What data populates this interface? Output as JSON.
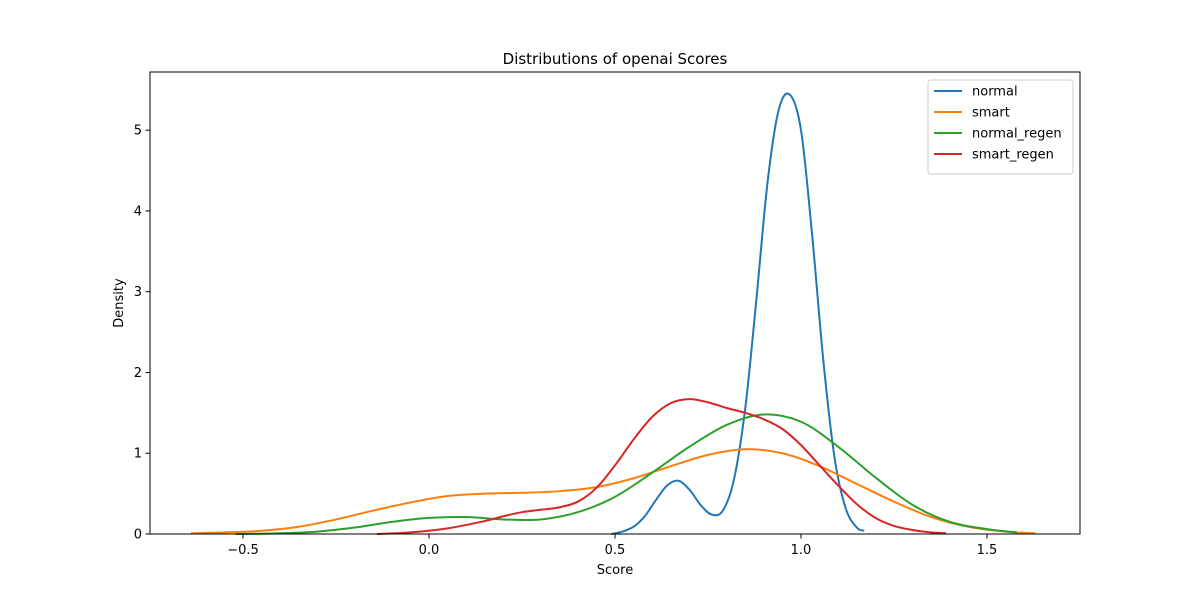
{
  "chart_data": {
    "type": "line",
    "title": "Distributions of openai Scores",
    "xlabel": "Score",
    "ylabel": "Density",
    "xlim": [
      -0.75,
      1.75
    ],
    "ylim": [
      0,
      5.72
    ],
    "xticks": [
      -0.5,
      0.0,
      0.5,
      1.0,
      1.5
    ],
    "xtick_labels": [
      "−0.5",
      "0.0",
      "0.5",
      "1.0",
      "1.5"
    ],
    "yticks": [
      0,
      1,
      2,
      3,
      4,
      5
    ],
    "ytick_labels": [
      "0",
      "1",
      "2",
      "3",
      "4",
      "5"
    ],
    "grid": false,
    "legend_position": "top-right",
    "series": [
      {
        "name": "normal",
        "color": "#1f77b4",
        "x": [
          0.49,
          0.52,
          0.55,
          0.58,
          0.61,
          0.64,
          0.67,
          0.7,
          0.73,
          0.76,
          0.79,
          0.82,
          0.85,
          0.88,
          0.91,
          0.94,
          0.97,
          1.0,
          1.03,
          1.06,
          1.09,
          1.12,
          1.15,
          1.17
        ],
        "y": [
          0.0,
          0.03,
          0.09,
          0.22,
          0.42,
          0.6,
          0.66,
          0.55,
          0.36,
          0.24,
          0.29,
          0.68,
          1.55,
          2.9,
          4.35,
          5.25,
          5.44,
          5.0,
          3.7,
          2.15,
          0.95,
          0.32,
          0.08,
          0.04
        ]
      },
      {
        "name": "smart",
        "color": "#ff7f0e",
        "x": [
          -0.64,
          -0.55,
          -0.45,
          -0.35,
          -0.25,
          -0.15,
          -0.05,
          0.05,
          0.15,
          0.25,
          0.35,
          0.45,
          0.55,
          0.65,
          0.75,
          0.85,
          0.95,
          1.05,
          1.15,
          1.25,
          1.35,
          1.45,
          1.55,
          1.63
        ],
        "y": [
          0.01,
          0.02,
          0.04,
          0.09,
          0.18,
          0.29,
          0.39,
          0.47,
          0.5,
          0.51,
          0.53,
          0.58,
          0.69,
          0.84,
          0.98,
          1.05,
          1.0,
          0.84,
          0.62,
          0.4,
          0.21,
          0.09,
          0.03,
          0.01
        ]
      },
      {
        "name": "normal_regen",
        "color": "#2ca02c",
        "x": [
          -0.52,
          -0.4,
          -0.3,
          -0.2,
          -0.1,
          0.0,
          0.1,
          0.2,
          0.3,
          0.4,
          0.5,
          0.6,
          0.7,
          0.8,
          0.9,
          1.0,
          1.1,
          1.2,
          1.3,
          1.4,
          1.5,
          1.58
        ],
        "y": [
          0.0,
          0.01,
          0.03,
          0.08,
          0.15,
          0.2,
          0.21,
          0.18,
          0.18,
          0.27,
          0.46,
          0.76,
          1.08,
          1.35,
          1.48,
          1.39,
          1.08,
          0.7,
          0.36,
          0.15,
          0.06,
          0.02
        ]
      },
      {
        "name": "smart_regen",
        "color": "#d62728",
        "x": [
          -0.14,
          -0.05,
          0.05,
          0.15,
          0.2,
          0.25,
          0.3,
          0.35,
          0.4,
          0.45,
          0.5,
          0.55,
          0.6,
          0.65,
          0.7,
          0.75,
          0.8,
          0.85,
          0.9,
          0.95,
          1.0,
          1.05,
          1.1,
          1.15,
          1.2,
          1.25,
          1.3,
          1.35,
          1.39
        ],
        "y": [
          0.0,
          0.02,
          0.07,
          0.16,
          0.22,
          0.27,
          0.3,
          0.33,
          0.4,
          0.57,
          0.85,
          1.17,
          1.45,
          1.62,
          1.67,
          1.63,
          1.56,
          1.5,
          1.42,
          1.3,
          1.1,
          0.85,
          0.6,
          0.37,
          0.2,
          0.1,
          0.05,
          0.02,
          0.01
        ]
      }
    ]
  }
}
